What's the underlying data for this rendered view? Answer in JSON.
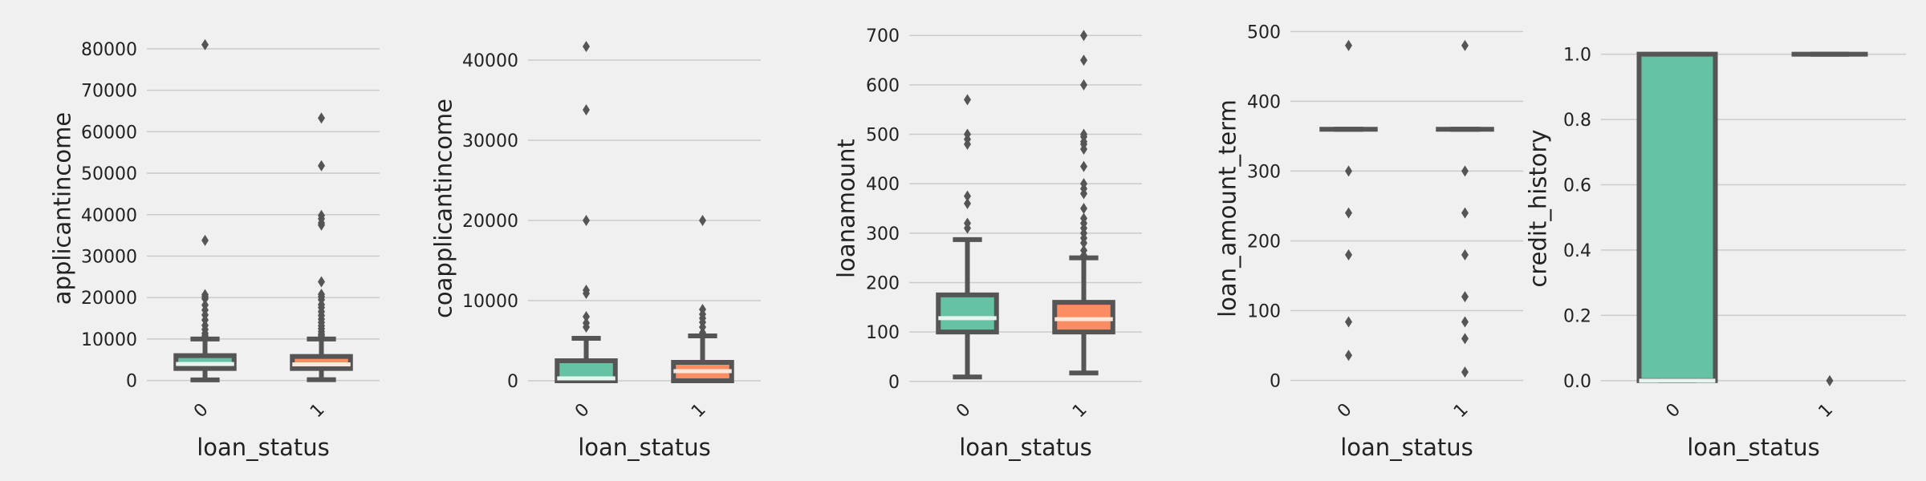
{
  "colors": {
    "background": "#f0f0f0",
    "grid": "#cbcbcb",
    "box_edge": "#555555",
    "series_0": "#66c2a5",
    "series_1": "#fc8d62"
  },
  "chart_data": [
    {
      "type": "box",
      "xlabel": "loan_status",
      "ylabel": "applicantincome",
      "categories": [
        "0",
        "1"
      ],
      "ylim": [
        -2000,
        85000
      ],
      "yticks": [
        0,
        10000,
        20000,
        30000,
        40000,
        50000,
        60000,
        70000,
        80000
      ],
      "ytick_labels": [
        "0",
        "10000",
        "20000",
        "30000",
        "40000",
        "50000",
        "60000",
        "70000",
        "80000"
      ],
      "boxes": [
        {
          "category": "0",
          "whisker_low": 150,
          "q1": 2900,
          "median": 4000,
          "q3": 6000,
          "whisker_high": 10000,
          "outliers": [
            81000,
            33800,
            20700,
            20200,
            19700,
            18200,
            17000,
            15800,
            14600,
            13300,
            12300,
            11400,
            10800
          ]
        },
        {
          "category": "1",
          "whisker_low": 200,
          "q1": 2900,
          "median": 3900,
          "q3": 5800,
          "whisker_high": 10000,
          "outliers": [
            63300,
            51800,
            39800,
            39000,
            38000,
            37500,
            23800,
            20800,
            20200,
            19500,
            18300,
            17600,
            16600,
            15700,
            14800,
            14000,
            13200,
            12500,
            11800,
            11200,
            10800
          ]
        }
      ]
    },
    {
      "type": "box",
      "xlabel": "loan_status",
      "ylabel": "coapplicantincome",
      "categories": [
        "0",
        "1"
      ],
      "ylim": [
        -1000,
        44000
      ],
      "yticks": [
        0,
        10000,
        20000,
        30000,
        40000
      ],
      "ytick_labels": [
        "0",
        "10000",
        "20000",
        "30000",
        "40000"
      ],
      "boxes": [
        {
          "category": "0",
          "whisker_low": 0,
          "q1": 0,
          "median": 300,
          "q3": 2500,
          "whisker_high": 5300,
          "outliers": [
            41700,
            33800,
            20000,
            11300,
            10900,
            8000,
            7200,
            6700
          ]
        },
        {
          "category": "1",
          "whisker_low": 0,
          "q1": 0,
          "median": 1200,
          "q3": 2300,
          "whisker_high": 5600,
          "outliers": [
            20000,
            8900,
            8300,
            7800,
            7300,
            6700,
            6000
          ]
        }
      ]
    },
    {
      "type": "box",
      "xlabel": "loan_status",
      "ylabel": "loanamount",
      "categories": [
        "0",
        "1"
      ],
      "ylim": [
        -15,
        715
      ],
      "yticks": [
        0,
        100,
        200,
        300,
        400,
        500,
        600,
        700
      ],
      "ytick_labels": [
        "0",
        "100",
        "200",
        "300",
        "400",
        "500",
        "600",
        "700"
      ],
      "boxes": [
        {
          "category": "0",
          "whisker_low": 9,
          "q1": 100,
          "median": 128,
          "q3": 175,
          "whisker_high": 287,
          "outliers": [
            570,
            500,
            490,
            480,
            375,
            360,
            320,
            310
          ]
        },
        {
          "category": "1",
          "whisker_low": 17,
          "q1": 100,
          "median": 126,
          "q3": 160,
          "whisker_high": 250,
          "outliers": [
            700,
            650,
            600,
            500,
            495,
            485,
            480,
            470,
            435,
            400,
            390,
            380,
            350,
            330,
            320,
            310,
            300,
            290,
            280,
            265,
            255
          ]
        }
      ]
    },
    {
      "type": "box",
      "xlabel": "loan_status",
      "ylabel": "loan_amount_term",
      "categories": [
        "0",
        "1"
      ],
      "ylim": [
        -12,
        505
      ],
      "yticks": [
        0,
        100,
        200,
        300,
        400,
        500
      ],
      "ytick_labels": [
        "0",
        "100",
        "200",
        "300",
        "400",
        "500"
      ],
      "boxes": [
        {
          "category": "0",
          "whisker_low": 360,
          "q1": 360,
          "median": 360,
          "q3": 360,
          "whisker_high": 360,
          "outliers": [
            480,
            300,
            240,
            180,
            84,
            36
          ]
        },
        {
          "category": "1",
          "whisker_low": 360,
          "q1": 360,
          "median": 360,
          "q3": 360,
          "whisker_high": 360,
          "outliers": [
            480,
            300,
            240,
            180,
            120,
            84,
            60,
            12
          ]
        }
      ]
    },
    {
      "type": "box",
      "xlabel": "loan_status",
      "ylabel": "credit_history",
      "categories": [
        "0",
        "1"
      ],
      "ylim": [
        -0.025,
        1.08
      ],
      "yticks": [
        0.0,
        0.2,
        0.4,
        0.6,
        0.8,
        1.0
      ],
      "ytick_labels": [
        "0.0",
        "0.2",
        "0.4",
        "0.6",
        "0.8",
        "1.0"
      ],
      "boxes": [
        {
          "category": "0",
          "whisker_low": 0,
          "q1": 0,
          "median": 0,
          "q3": 1,
          "whisker_high": 1,
          "outliers": []
        },
        {
          "category": "1",
          "whisker_low": 1,
          "q1": 1,
          "median": 1,
          "q3": 1,
          "whisker_high": 1,
          "outliers": [
            0
          ]
        }
      ]
    }
  ]
}
